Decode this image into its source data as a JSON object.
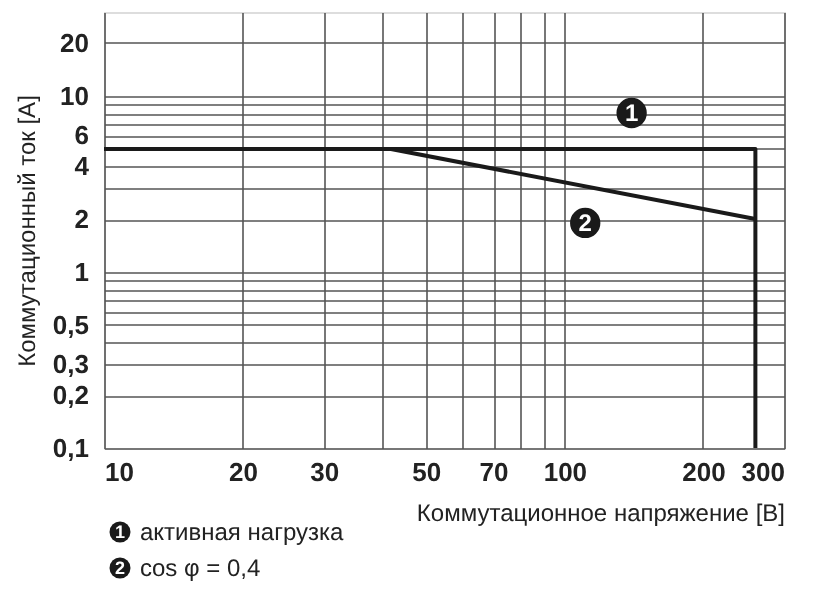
{
  "chart_data": {
    "type": "line",
    "xlabel": "Коммутационное напряжение [B]",
    "ylabel": "Коммутационный ток [A]",
    "log": "xy",
    "xlim": [
      10,
      300
    ],
    "ylim": [
      0.1,
      30
    ],
    "xticks": [
      10,
      20,
      30,
      {
        "value": 40,
        "label": null
      },
      50,
      {
        "value": 60,
        "label": null
      },
      70,
      {
        "value": 80,
        "label": null
      },
      {
        "value": 90,
        "label": null
      },
      100,
      200,
      300
    ],
    "yticks": [
      {
        "value": 0.1,
        "label": "0,1"
      },
      {
        "value": 0.2,
        "label": "0,2"
      },
      {
        "value": 0.3,
        "label": "0,3"
      },
      {
        "value": 0.4,
        "label": null
      },
      {
        "value": 0.5,
        "label": "0,5"
      },
      {
        "value": 0.6,
        "label": null
      },
      {
        "value": 0.7,
        "label": null
      },
      {
        "value": 0.8,
        "label": null
      },
      {
        "value": 0.9,
        "label": null
      },
      1,
      2,
      {
        "value": 3,
        "label": null
      },
      4,
      {
        "value": 5,
        "label": null
      },
      6,
      {
        "value": 7,
        "label": null
      },
      {
        "value": 8,
        "label": null
      },
      {
        "value": 9,
        "label": null
      },
      10,
      20
    ],
    "grid": true,
    "legend": "bottom",
    "line_style": "solid",
    "marker": "none",
    "series": [
      {
        "name": "активная нагрузка",
        "color": "#1a1a1a",
        "x": [
          10,
          260,
          260
        ],
        "values": [
          5,
          5,
          0.1
        ]
      },
      {
        "name": "cos φ = 0,4",
        "color": "#1a1a1a",
        "x": [
          42,
          260
        ],
        "values": [
          5,
          2
        ]
      }
    ],
    "annotations": [
      {
        "text": "1",
        "x": 140,
        "y": 8
      },
      {
        "text": "2",
        "x": 111,
        "y": 1.9
      }
    ]
  }
}
